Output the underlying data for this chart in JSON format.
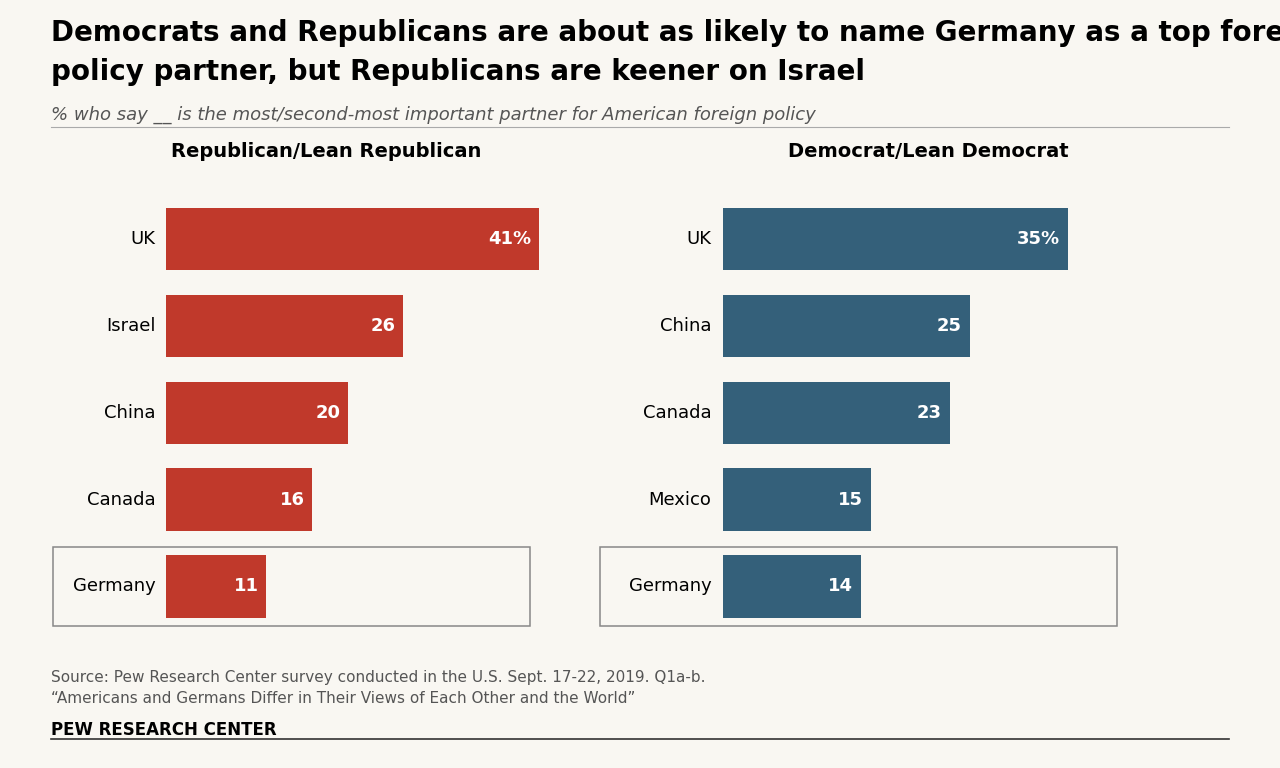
{
  "title_line1": "Democrats and Republicans are about as likely to name Germany as a top foreign",
  "title_line2": "policy partner, but Republicans are keener on Israel",
  "subtitle": "% who say __ is the most/second-most important partner for American foreign policy",
  "rep_label": "Republican/Lean Republican",
  "dem_label": "Democrat/Lean Democrat",
  "rep_categories": [
    "UK",
    "Israel",
    "China",
    "Canada",
    "Germany"
  ],
  "rep_values": [
    41,
    26,
    20,
    16,
    11
  ],
  "rep_value_labels": [
    "41%",
    "26",
    "20",
    "16",
    "11"
  ],
  "dem_categories": [
    "UK",
    "China",
    "Canada",
    "Mexico",
    "Germany"
  ],
  "dem_values": [
    35,
    25,
    23,
    15,
    14
  ],
  "dem_value_labels": [
    "35%",
    "25",
    "23",
    "15",
    "14"
  ],
  "rep_color": "#C0392B",
  "dem_color": "#34607A",
  "background_color": "#F9F7F2",
  "source_text": "Source: Pew Research Center survey conducted in the U.S. Sept. 17-22, 2019. Q1a-b.",
  "source_text2": "“Americans and Germans Differ in Their Views of Each Other and the World”",
  "footer_text": "PEW RESEARCH CENTER",
  "title_fontsize": 20,
  "subtitle_fontsize": 13,
  "header_fontsize": 14,
  "label_fontsize": 13,
  "value_fontsize": 13,
  "source_fontsize": 11,
  "footer_fontsize": 12,
  "xlim": [
    0,
    50
  ]
}
